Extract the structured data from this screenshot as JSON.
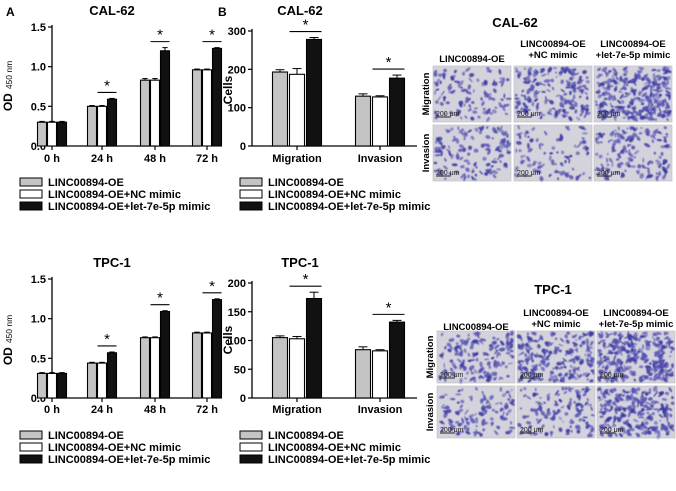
{
  "panel_labels": {
    "a": "A",
    "b": "B"
  },
  "colors": {
    "oe": "#c4c4c4",
    "nc": "#ffffff",
    "let7e": "#111111",
    "stain": "#3b3aa0"
  },
  "legend": [
    "LINC00894-OE",
    "LINC00894-OE+NC mimic",
    "LINC00894-OE+let-7e-5p mimic"
  ],
  "chart_data": [
    {
      "type": "bar",
      "title": "CAL-62",
      "ylabel_main": "OD",
      "ylabel_sub": "450 nm",
      "categories": [
        "0 h",
        "24 h",
        "48 h",
        "72 h"
      ],
      "ylim": [
        0,
        1.5
      ],
      "yticks": [
        "0.0",
        "0.5",
        "1.0",
        "1.5"
      ],
      "series": [
        {
          "name": "LINC00894-OE",
          "values": [
            0.3,
            0.5,
            0.83,
            0.96
          ],
          "err": [
            0.01,
            0.01,
            0.02,
            0.01
          ]
        },
        {
          "name": "LINC00894-OE+NC mimic",
          "values": [
            0.3,
            0.5,
            0.83,
            0.96
          ],
          "err": [
            0.01,
            0.01,
            0.02,
            0.01
          ]
        },
        {
          "name": "LINC00894-OE+let-7e-5p mimic",
          "values": [
            0.3,
            0.59,
            1.2,
            1.23
          ],
          "err": [
            0.01,
            0.01,
            0.04,
            0.01
          ]
        }
      ],
      "significance": [
        "",
        "*",
        "*",
        "*"
      ]
    },
    {
      "type": "bar",
      "title": "CAL-62",
      "ylabel": "Cells",
      "categories": [
        "Migration",
        "Invasion"
      ],
      "ylim": [
        0,
        300
      ],
      "yticks": [
        "0",
        "100",
        "200",
        "300"
      ],
      "series": [
        {
          "name": "LINC00894-OE",
          "values": [
            193,
            130
          ],
          "err": [
            6,
            6
          ]
        },
        {
          "name": "LINC00894-OE+NC mimic",
          "values": [
            187,
            128
          ],
          "err": [
            15,
            3
          ]
        },
        {
          "name": "LINC00894-OE+let-7e-5p mimic",
          "values": [
            278,
            177
          ],
          "err": [
            5,
            8
          ]
        }
      ],
      "significance": [
        "*",
        "*"
      ]
    },
    {
      "type": "bar",
      "title": "TPC-1",
      "ylabel_main": "OD",
      "ylabel_sub": "450 nm",
      "categories": [
        "0 h",
        "24 h",
        "48 h",
        "72 h"
      ],
      "ylim": [
        0,
        1.5
      ],
      "yticks": [
        "0.0",
        "0.5",
        "1.0",
        "1.5"
      ],
      "series": [
        {
          "name": "LINC00894-OE",
          "values": [
            0.31,
            0.44,
            0.76,
            0.82
          ],
          "err": [
            0.01,
            0.01,
            0.01,
            0.01
          ]
        },
        {
          "name": "LINC00894-OE+NC mimic",
          "values": [
            0.31,
            0.44,
            0.76,
            0.82
          ],
          "err": [
            0.01,
            0.01,
            0.01,
            0.01
          ]
        },
        {
          "name": "LINC00894-OE+let-7e-5p mimic",
          "values": [
            0.31,
            0.57,
            1.09,
            1.24
          ],
          "err": [
            0.01,
            0.01,
            0.01,
            0.01
          ]
        }
      ],
      "significance": [
        "",
        "*",
        "*",
        "*"
      ]
    },
    {
      "type": "bar",
      "title": "TPC-1",
      "ylabel": "Cells",
      "categories": [
        "Migration",
        "Invasion"
      ],
      "ylim": [
        0,
        200
      ],
      "yticks": [
        "0",
        "50",
        "100",
        "150",
        "200"
      ],
      "series": [
        {
          "name": "LINC00894-OE",
          "values": [
            105,
            84
          ],
          "err": [
            3,
            5
          ]
        },
        {
          "name": "LINC00894-OE+NC mimic",
          "values": [
            103,
            82
          ],
          "err": [
            4,
            2
          ]
        },
        {
          "name": "LINC00894-OE+let-7e-5p mimic",
          "values": [
            173,
            132
          ],
          "err": [
            11,
            3
          ]
        }
      ],
      "significance": [
        "*",
        "*"
      ]
    }
  ],
  "micrographs": [
    {
      "title": "CAL-62",
      "columns": [
        "LINC00894-OE",
        "LINC00894-OE\n+NC mimic",
        "LINC00894-OE\n+let-7e-5p mimic"
      ],
      "rows": [
        "Migration",
        "Invasion"
      ],
      "scale_bar": "200 μm"
    },
    {
      "title": "TPC-1",
      "columns": [
        "LINC00894-OE",
        "LINC00894-OE\n+NC mimic",
        "LINC00894-OE\n+let-7e-5p mimic"
      ],
      "rows": [
        "Migration",
        "Invasion"
      ],
      "scale_bar": "200 μm"
    }
  ]
}
